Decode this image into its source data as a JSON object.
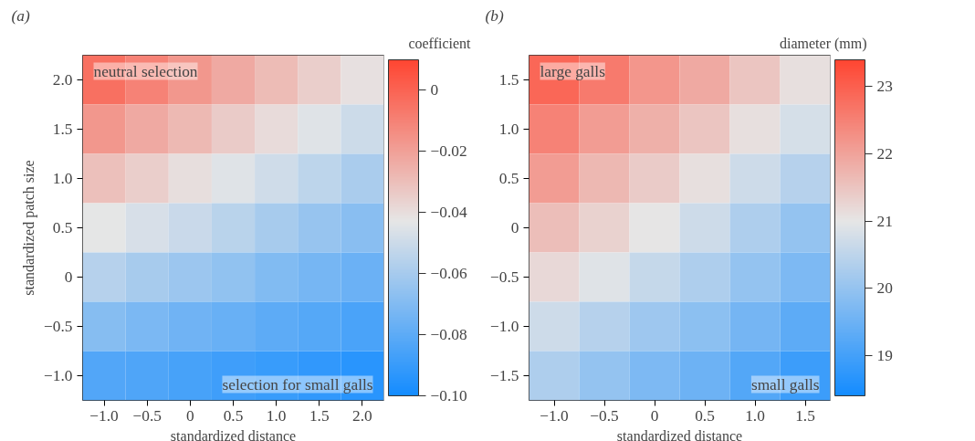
{
  "chart_data": [
    {
      "type": "heatmap",
      "title": "(a)",
      "xlabel": "standardized distance",
      "ylabel": "standardized patch size",
      "clabel": "coefficient",
      "categories": [
        "−1.0",
        "−0.5",
        "0",
        "0.5",
        "1.0",
        "1.5",
        "2.0"
      ],
      "y_categories": [
        "2.0",
        "1.5",
        "1.0",
        "0.5",
        "0",
        "−0.5",
        "−1.0"
      ],
      "cells": [
        [
          -0.004,
          -0.01,
          -0.017,
          -0.023,
          -0.029,
          -0.035,
          -0.041
        ],
        [
          -0.017,
          -0.023,
          -0.028,
          -0.034,
          -0.039,
          -0.045,
          -0.05
        ],
        [
          -0.03,
          -0.035,
          -0.04,
          -0.045,
          -0.049,
          -0.054,
          -0.059
        ],
        [
          -0.043,
          -0.047,
          -0.051,
          -0.055,
          -0.06,
          -0.064,
          -0.068
        ],
        [
          -0.056,
          -0.06,
          -0.063,
          -0.066,
          -0.07,
          -0.073,
          -0.076
        ],
        [
          -0.069,
          -0.072,
          -0.075,
          -0.077,
          -0.08,
          -0.082,
          -0.085
        ],
        [
          -0.083,
          -0.084,
          -0.086,
          -0.088,
          -0.09,
          -0.092,
          -0.094
        ]
      ],
      "clim": [
        -0.1,
        0.01
      ],
      "cticks": [
        {
          "value": 0,
          "label": "0"
        },
        {
          "value": -0.02,
          "label": "−0.02"
        },
        {
          "value": -0.04,
          "label": "−0.04"
        },
        {
          "value": -0.06,
          "label": "−0.06"
        },
        {
          "value": -0.08,
          "label": "−0.08"
        },
        {
          "value": -0.1,
          "label": "−0.10"
        }
      ],
      "annotations": [
        "neutral selection",
        "selection for small galls"
      ]
    },
    {
      "type": "heatmap",
      "title": "(b)",
      "xlabel": "standardized distance",
      "clabel": "diameter (mm)",
      "categories": [
        "−1.0",
        "−0.5",
        "0",
        "0.5",
        "1.0",
        "1.5"
      ],
      "y_categories": [
        "1.5",
        "1.0",
        "0.5",
        "0",
        "−0.5",
        "−1.0",
        "−1.5"
      ],
      "cells": [
        [
          22.9,
          22.6,
          22.2,
          21.9,
          21.5,
          21.1
        ],
        [
          22.5,
          22.1,
          21.8,
          21.5,
          21.1,
          20.8
        ],
        [
          22.1,
          21.7,
          21.4,
          21.1,
          20.7,
          20.4
        ],
        [
          21.6,
          21.3,
          21.0,
          20.7,
          20.3,
          20.0
        ],
        [
          21.2,
          20.9,
          20.6,
          20.3,
          20.0,
          19.7
        ],
        [
          20.7,
          20.4,
          20.1,
          19.9,
          19.6,
          19.3
        ],
        [
          20.3,
          20.0,
          19.7,
          19.5,
          19.2,
          18.9
        ]
      ],
      "clim": [
        18.4,
        23.4
      ],
      "cticks": [
        19,
        20,
        21,
        22,
        23
      ],
      "annotations": [
        "large galls",
        "small galls"
      ]
    }
  ]
}
